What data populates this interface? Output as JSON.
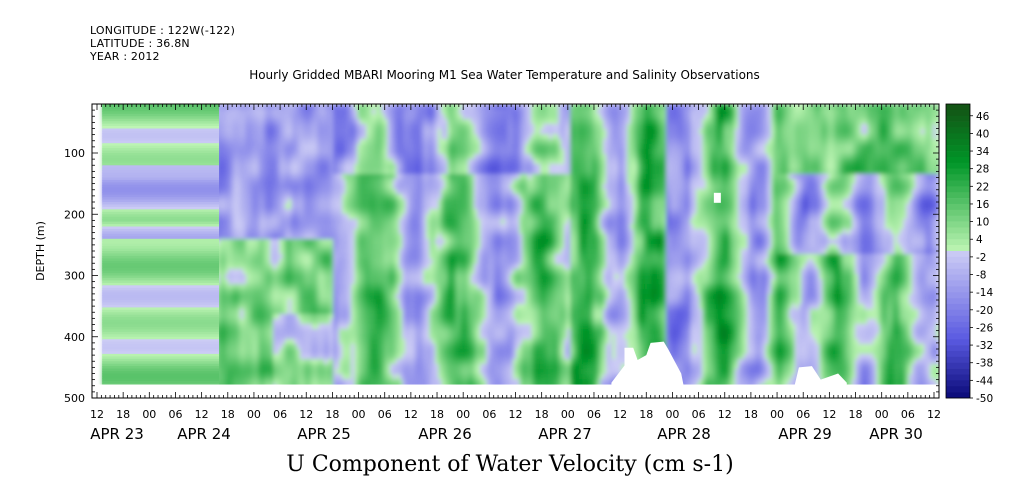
{
  "header": {
    "longitude": "LONGITUDE : 122W(-122)",
    "latitude": "LATITUDE : 36.8N",
    "year": "YEAR : 2012",
    "title": "Hourly Gridded MBARI Mooring M1 Sea Water Temperature and Salinity Observations"
  },
  "chart_data": {
    "type": "heatmap",
    "title": "Hourly Gridded MBARI Mooring M1 Sea Water Temperature and Salinity Observations",
    "xlabel": "",
    "ylabel": "DEPTH (m)",
    "bottom_title": "U Component of Water Velocity (cm s-1)",
    "ylim": [
      500,
      20
    ],
    "y_ticks": [
      100,
      200,
      300,
      400,
      500
    ],
    "x_hours_start": "APR 23 12",
    "x_hour_ticks": [
      "12",
      "18",
      "00",
      "06",
      "12",
      "18",
      "00",
      "06",
      "12",
      "18",
      "00",
      "06",
      "12",
      "18",
      "00",
      "06",
      "12",
      "18",
      "00",
      "06",
      "12",
      "18",
      "00",
      "06",
      "12",
      "18",
      "00",
      "06",
      "12",
      "18",
      "00",
      "06",
      "12"
    ],
    "x_day_labels": [
      "APR 23",
      "APR 24",
      "APR 25",
      "APR 26",
      "APR 27",
      "APR 28",
      "APR 29",
      "APR 30"
    ],
    "colorbar": {
      "labels": [
        "46",
        "40",
        "34",
        "28",
        "22",
        "16",
        "10",
        "4",
        "-2",
        "-8",
        "-14",
        "-20",
        "-26",
        "-32",
        "-38",
        "-44",
        "-50"
      ],
      "range": [
        -50,
        50
      ],
      "step": 2
    },
    "approx_pattern": [
      {
        "period": "APR 23 18 - APR 25 03",
        "surface_to_400m": "banded: alternating weak positive (green) and weak negative (blue) layers"
      },
      {
        "period": "APR 25 03 - APR 26 12",
        "upper_250m": "negative (-10 to -20)",
        "below_250m": "positive (5 to 20)"
      },
      {
        "period": "APR 26 12 - APR 28 00",
        "pattern": "alternating vertical bands of positive and negative"
      },
      {
        "period": "APR 28 00 - APR 30 12",
        "upper_200m": "mixed, positive near surface toward APR 30",
        "deep": "positive with negative bands"
      }
    ]
  }
}
